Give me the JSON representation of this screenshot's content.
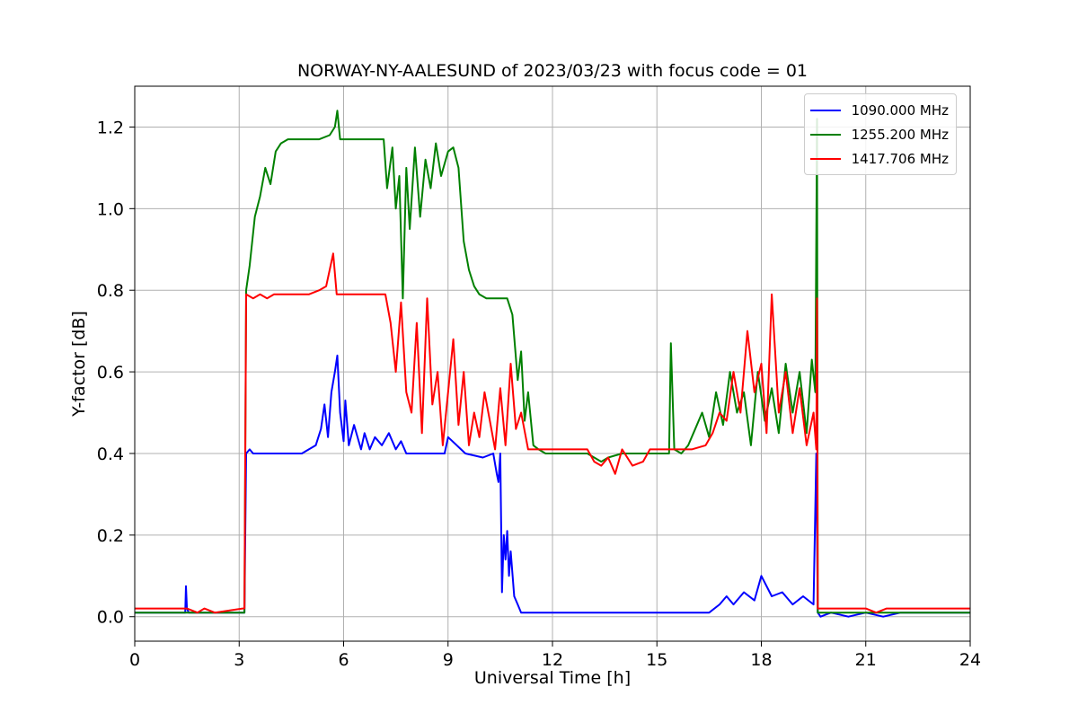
{
  "chart_data": {
    "type": "line",
    "title": "NORWAY-NY-AALESUND of 2023/03/23 with focus code = 01",
    "xlabel": "Universal Time [h]",
    "ylabel": "Y-factor [dB]",
    "xlim": [
      0,
      24
    ],
    "ylim": [
      -0.06,
      1.3
    ],
    "xticks": [
      0,
      3,
      6,
      9,
      12,
      15,
      18,
      21,
      24
    ],
    "xtick_labels": [
      "0",
      "3",
      "6",
      "9",
      "12",
      "15",
      "18",
      "21",
      "24"
    ],
    "yticks": [
      0.0,
      0.2,
      0.4,
      0.6,
      0.8,
      1.0,
      1.2
    ],
    "ytick_labels": [
      "0.0",
      "0.2",
      "0.4",
      "0.6",
      "0.8",
      "1.0",
      "1.2"
    ],
    "grid": true,
    "legend_position": "top-right",
    "series": [
      {
        "name": "1090.000 MHz",
        "color": "#0000ff",
        "x": [
          0,
          1.45,
          1.47,
          1.5,
          1.55,
          3.15,
          3.2,
          3.3,
          3.4,
          3.5,
          4.0,
          4.8,
          5.0,
          5.2,
          5.35,
          5.45,
          5.55,
          5.65,
          5.75,
          5.82,
          5.9,
          6.0,
          6.05,
          6.15,
          6.3,
          6.5,
          6.6,
          6.75,
          6.9,
          7.1,
          7.3,
          7.5,
          7.65,
          7.8,
          8.0,
          8.5,
          8.9,
          9.0,
          9.5,
          10.0,
          10.3,
          10.4,
          10.45,
          10.5,
          10.55,
          10.6,
          10.65,
          10.7,
          10.75,
          10.8,
          10.9,
          11.0,
          11.1,
          11.5,
          13.0,
          15.5,
          16.5,
          16.8,
          17.0,
          17.2,
          17.5,
          17.8,
          18.0,
          18.3,
          18.6,
          18.9,
          19.2,
          19.5,
          19.58,
          19.62,
          19.7,
          20.0,
          20.5,
          21.0,
          21.5,
          22.0,
          23.5,
          24.0
        ],
        "y": [
          0.01,
          0.01,
          0.075,
          0.02,
          0.01,
          0.01,
          0.4,
          0.41,
          0.4,
          0.4,
          0.4,
          0.4,
          0.41,
          0.42,
          0.46,
          0.52,
          0.44,
          0.55,
          0.6,
          0.64,
          0.5,
          0.43,
          0.53,
          0.42,
          0.47,
          0.41,
          0.45,
          0.41,
          0.44,
          0.42,
          0.45,
          0.41,
          0.43,
          0.4,
          0.4,
          0.4,
          0.4,
          0.44,
          0.4,
          0.39,
          0.4,
          0.35,
          0.33,
          0.4,
          0.06,
          0.2,
          0.14,
          0.21,
          0.1,
          0.16,
          0.05,
          0.03,
          0.01,
          0.01,
          0.01,
          0.01,
          0.01,
          0.03,
          0.05,
          0.03,
          0.06,
          0.04,
          0.1,
          0.05,
          0.06,
          0.03,
          0.05,
          0.03,
          0.4,
          0.01,
          0.0,
          0.01,
          0.0,
          0.01,
          0.0,
          0.01,
          0.01,
          0.01
        ]
      },
      {
        "name": "1255.200 MHz",
        "color": "#008000",
        "x": [
          0,
          3.1,
          3.15,
          3.2,
          3.3,
          3.45,
          3.6,
          3.75,
          3.9,
          4.05,
          4.2,
          4.4,
          4.7,
          5.0,
          5.3,
          5.6,
          5.75,
          5.82,
          5.9,
          6.1,
          6.5,
          7.0,
          7.15,
          7.25,
          7.4,
          7.5,
          7.6,
          7.7,
          7.8,
          7.9,
          8.05,
          8.2,
          8.35,
          8.5,
          8.65,
          8.8,
          9.0,
          9.15,
          9.3,
          9.45,
          9.6,
          9.75,
          9.9,
          10.1,
          10.4,
          10.7,
          10.85,
          11.0,
          11.1,
          11.2,
          11.3,
          11.45,
          11.6,
          11.8,
          12.0,
          13.0,
          13.4,
          13.6,
          14.0,
          14.5,
          15.2,
          15.35,
          15.4,
          15.5,
          15.7,
          15.9,
          16.1,
          16.3,
          16.5,
          16.7,
          16.9,
          17.1,
          17.3,
          17.5,
          17.7,
          17.9,
          18.1,
          18.3,
          18.5,
          18.7,
          18.9,
          19.1,
          19.3,
          19.45,
          19.55,
          19.6,
          19.62,
          19.65,
          19.7,
          21.0,
          24.0
        ],
        "y": [
          0.01,
          0.01,
          0.01,
          0.8,
          0.86,
          0.98,
          1.03,
          1.1,
          1.06,
          1.14,
          1.16,
          1.17,
          1.17,
          1.17,
          1.17,
          1.18,
          1.2,
          1.24,
          1.17,
          1.17,
          1.17,
          1.17,
          1.17,
          1.05,
          1.15,
          1.0,
          1.08,
          0.78,
          1.1,
          0.95,
          1.15,
          0.98,
          1.12,
          1.05,
          1.16,
          1.08,
          1.14,
          1.15,
          1.1,
          0.92,
          0.85,
          0.81,
          0.79,
          0.78,
          0.78,
          0.78,
          0.74,
          0.58,
          0.65,
          0.48,
          0.55,
          0.42,
          0.41,
          0.4,
          0.4,
          0.4,
          0.38,
          0.39,
          0.4,
          0.4,
          0.4,
          0.4,
          0.67,
          0.41,
          0.4,
          0.42,
          0.46,
          0.5,
          0.44,
          0.55,
          0.47,
          0.6,
          0.5,
          0.55,
          0.42,
          0.6,
          0.48,
          0.56,
          0.45,
          0.62,
          0.5,
          0.6,
          0.45,
          0.63,
          0.55,
          1.22,
          0.01,
          0.01,
          0.01,
          0.01,
          0.01
        ]
      },
      {
        "name": "1417.706 MHz",
        "color": "#ff0000",
        "x": [
          0,
          1.5,
          1.8,
          2.0,
          2.3,
          3.1,
          3.15,
          3.2,
          3.4,
          3.6,
          3.8,
          4.0,
          4.5,
          5.0,
          5.3,
          5.5,
          5.6,
          5.7,
          5.8,
          6.0,
          6.5,
          7.0,
          7.2,
          7.35,
          7.5,
          7.65,
          7.8,
          7.95,
          8.1,
          8.25,
          8.4,
          8.55,
          8.7,
          8.85,
          9.0,
          9.15,
          9.3,
          9.45,
          9.6,
          9.75,
          9.9,
          10.05,
          10.2,
          10.35,
          10.5,
          10.65,
          10.8,
          10.95,
          11.1,
          11.3,
          11.5,
          12.0,
          13.0,
          13.2,
          13.4,
          13.6,
          13.8,
          14.0,
          14.3,
          14.6,
          14.8,
          15.0,
          16.0,
          16.4,
          16.6,
          16.8,
          17.0,
          17.2,
          17.4,
          17.6,
          17.8,
          18.0,
          18.15,
          18.3,
          18.5,
          18.7,
          18.9,
          19.1,
          19.3,
          19.5,
          19.58,
          19.6,
          19.62,
          19.65,
          20.5,
          21.0,
          21.3,
          21.6,
          23.5,
          24.0
        ],
        "y": [
          0.02,
          0.02,
          0.01,
          0.02,
          0.01,
          0.02,
          0.02,
          0.79,
          0.78,
          0.79,
          0.78,
          0.79,
          0.79,
          0.79,
          0.8,
          0.81,
          0.85,
          0.89,
          0.79,
          0.79,
          0.79,
          0.79,
          0.79,
          0.72,
          0.6,
          0.77,
          0.55,
          0.5,
          0.72,
          0.45,
          0.78,
          0.52,
          0.6,
          0.42,
          0.55,
          0.68,
          0.47,
          0.6,
          0.42,
          0.5,
          0.44,
          0.55,
          0.48,
          0.41,
          0.56,
          0.42,
          0.62,
          0.46,
          0.5,
          0.41,
          0.41,
          0.41,
          0.41,
          0.38,
          0.37,
          0.39,
          0.35,
          0.41,
          0.37,
          0.38,
          0.41,
          0.41,
          0.41,
          0.42,
          0.45,
          0.5,
          0.48,
          0.6,
          0.5,
          0.7,
          0.55,
          0.62,
          0.45,
          0.79,
          0.5,
          0.6,
          0.45,
          0.56,
          0.42,
          0.5,
          0.41,
          0.78,
          0.02,
          0.02,
          0.02,
          0.02,
          0.01,
          0.02,
          0.02,
          0.02
        ]
      }
    ]
  }
}
